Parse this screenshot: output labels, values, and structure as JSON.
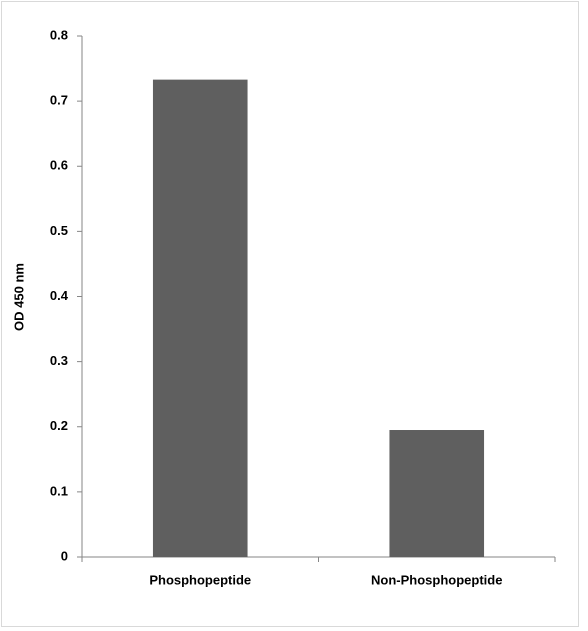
{
  "chart_data": {
    "type": "bar",
    "y_label": "OD 450 nm",
    "categories": [
      "Phosphopeptide",
      "Non-Phosphopeptide"
    ],
    "values": [
      0.733,
      0.195
    ],
    "color": "#5f5f5f",
    "ylim": [
      0,
      0.8
    ],
    "yticks": [
      0,
      0.1,
      0.2,
      0.3,
      0.4,
      0.5,
      0.6,
      0.7,
      0.8
    ],
    "grid": false
  }
}
